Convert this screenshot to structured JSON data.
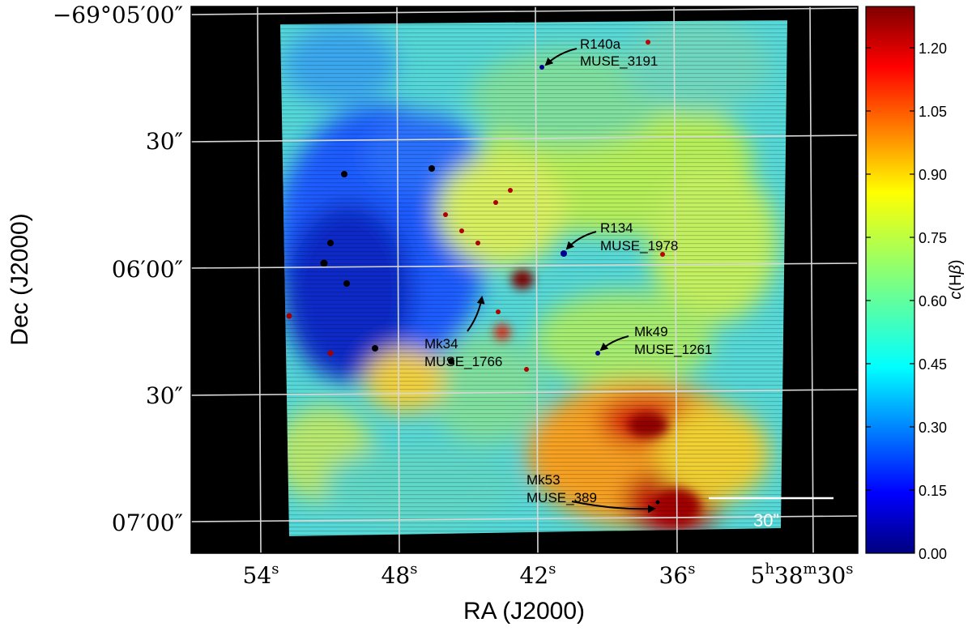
{
  "figure": {
    "x_axis_label": "RA (J2000)",
    "y_axis_label": "Dec (J2000)",
    "ra_ticks": [
      {
        "main": "54",
        "sup": "s"
      },
      {
        "main": "48",
        "sup": "s"
      },
      {
        "main": "42",
        "sup": "s"
      },
      {
        "main": "36",
        "sup": "s"
      }
    ],
    "ra_last_tick": {
      "p1": "5",
      "s1": "h",
      "p2": "38",
      "s2": "m",
      "p3": "30",
      "s3": "s"
    },
    "dec_ticks": [
      "−69°05′00″",
      "30″",
      "06′00″",
      "30″",
      "07′00″"
    ],
    "scale_bar_label": "30”"
  },
  "annotations": [
    {
      "name": "R140a",
      "id": "MUSE_3191"
    },
    {
      "name": "R134",
      "id": "MUSE_1978"
    },
    {
      "name": "Mk34",
      "id": "MUSE_1766"
    },
    {
      "name": "Mk49",
      "id": "MUSE_1261"
    },
    {
      "name": "Mk53",
      "id": "MUSE_389"
    }
  ],
  "colorbar": {
    "label_main": "c",
    "label_paren": "(H",
    "label_beta": "β",
    "label_close": ")",
    "ticks": [
      "1.20",
      "1.05",
      "0.90",
      "0.75",
      "0.60",
      "0.45",
      "0.30",
      "0.15",
      "0.00"
    ],
    "colors": [
      "#00007f",
      "#0000ff",
      "#007fff",
      "#00ffff",
      "#7fff7f",
      "#ffff00",
      "#ff7f00",
      "#ff0000",
      "#7f0000"
    ]
  }
}
